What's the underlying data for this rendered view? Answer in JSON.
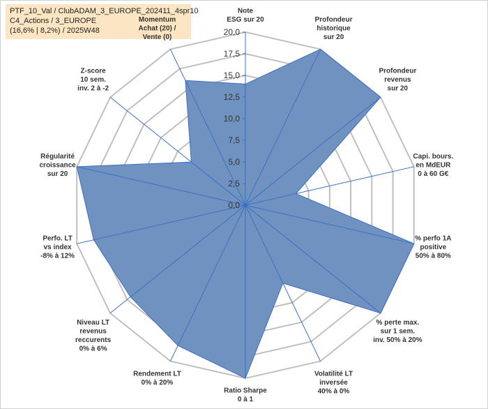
{
  "header": {
    "line1": "PTF_10_Val / ClubADAM_3_EUROPE_202411_4spr10",
    "line2": "C4_Actions / 3_EUROPE",
    "line3": "(16,6% | 8,2%) / 2025W48"
  },
  "chart_data": {
    "type": "radar",
    "title": "",
    "rmin": 0,
    "rmax": 20,
    "ticks": [
      "0,0",
      "2,5",
      "5,0",
      "7,5",
      "10,0",
      "12,5",
      "15,0",
      "17,5",
      "20,0"
    ],
    "tick_values": [
      0,
      2.5,
      5,
      7.5,
      10,
      12.5,
      15,
      17.5,
      20
    ],
    "grid": true,
    "fill_color": "#6f92c1",
    "line_color": "#3a6fc4",
    "grid_color": "#bfbfbf",
    "axes": [
      {
        "label": [
          "Note",
          "ESG sur 20"
        ],
        "value": 14
      },
      {
        "label": [
          "Profondeur",
          "historique",
          "sur 20"
        ],
        "value": 20
      },
      {
        "label": [
          "Profondeur",
          "revenus",
          "sur 20"
        ],
        "value": 20
      },
      {
        "label": [
          "Capi. bours.",
          "en MdEUR",
          "0 à 60 G€"
        ],
        "value": 6
      },
      {
        "label": [
          "% perfo 1A",
          "positive",
          "50% à 80%"
        ],
        "value": 20
      },
      {
        "label": [
          "% perte max.",
          "sur 1 sem.",
          "inv. 50% à 20%"
        ],
        "value": 20
      },
      {
        "label": [
          "Volatilité LT",
          "inversée",
          "40% à 0%"
        ],
        "value": 10
      },
      {
        "label": [
          "Ratio Sharpe",
          "0 à 1"
        ],
        "value": 20
      },
      {
        "label": [
          "Rendement LT",
          "0% à 20%"
        ],
        "value": 18
      },
      {
        "label": [
          "Niveau LT",
          "revenus",
          "reccurents",
          "0% à 6%"
        ],
        "value": 17
      },
      {
        "label": [
          "Perfo. LT",
          "vs index",
          "-8% à 12%"
        ],
        "value": 18
      },
      {
        "label": [
          "Régularité",
          "croissance",
          "sur 20"
        ],
        "value": 20
      },
      {
        "label": [
          "Z-score",
          "10 sem.",
          "inv. 2 à -2"
        ],
        "value": 8
      },
      {
        "label": [
          "Momentum",
          "Achat (20) /",
          "Vente (0)"
        ],
        "value": 16
      }
    ]
  }
}
